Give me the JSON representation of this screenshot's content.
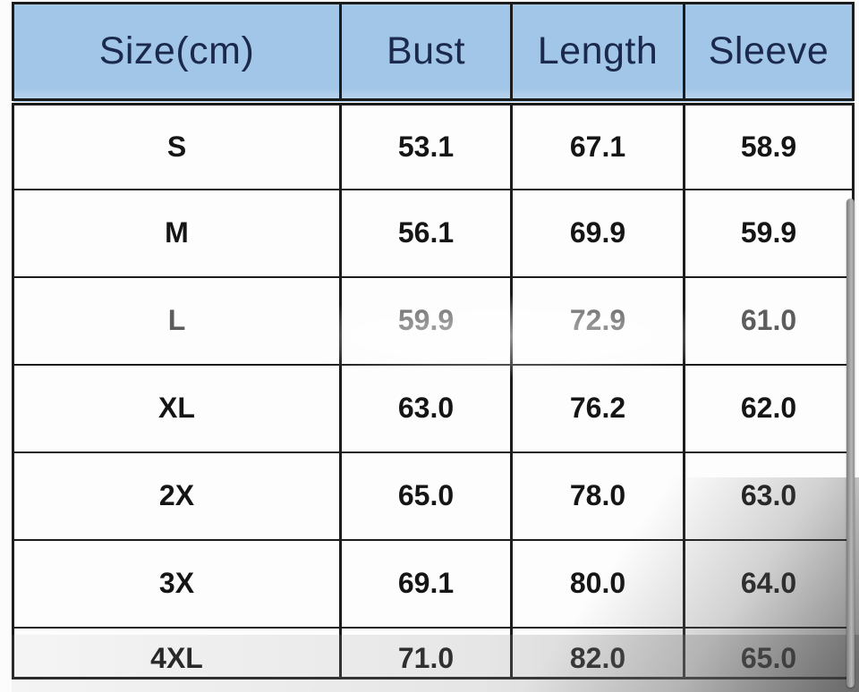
{
  "table": {
    "headers": [
      "Size(cm)",
      "Bust",
      "Length",
      "Sleeve"
    ],
    "rows": [
      {
        "size": "S",
        "bust": "53.1",
        "length": "67.1",
        "sleeve": "58.9"
      },
      {
        "size": "M",
        "bust": "56.1",
        "length": "69.9",
        "sleeve": "59.9"
      },
      {
        "size": "L",
        "bust": "59.9",
        "length": "72.9",
        "sleeve": "61.0"
      },
      {
        "size": "XL",
        "bust": "63.0",
        "length": "76.2",
        "sleeve": "62.0"
      },
      {
        "size": "2X",
        "bust": "65.0",
        "length": "78.0",
        "sleeve": "63.0"
      },
      {
        "size": "3X",
        "bust": "69.1",
        "length": "80.0",
        "sleeve": "64.0"
      },
      {
        "size": "4XL",
        "bust": "71.0",
        "length": "82.0",
        "sleeve": "65.0"
      }
    ]
  },
  "colors": {
    "header_bg": "#a2c6e8",
    "header_text": "#1b2a4c",
    "border": "#1c1c1c",
    "cell_text": "#151515",
    "faded_row_text": "#474747"
  }
}
